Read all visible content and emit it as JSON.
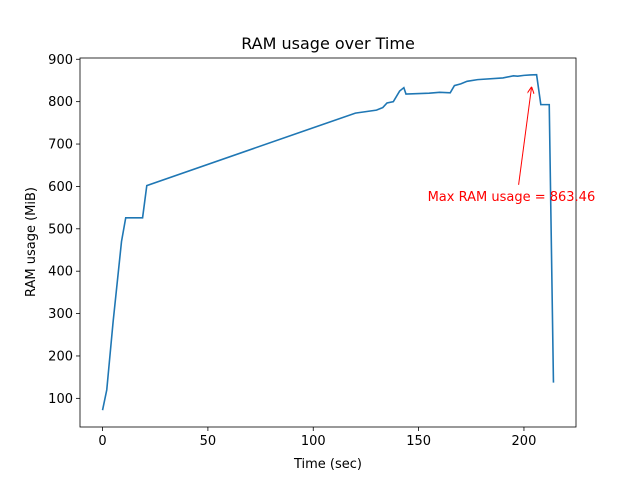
{
  "chart_data": {
    "type": "line",
    "title": "RAM usage over Time",
    "xlabel": "Time (sec)",
    "ylabel": "RAM usage (MiB)",
    "x": [
      0,
      2,
      5,
      9,
      11,
      19,
      21,
      120,
      130,
      133,
      135,
      138,
      141,
      143,
      144,
      155,
      160,
      165,
      167,
      170,
      173,
      178,
      190,
      195,
      197,
      200,
      203,
      206,
      208,
      212,
      214
    ],
    "series": [
      {
        "name": "RAM usage",
        "color": "#1f77b4",
        "values": [
          72,
          120,
          280,
          470,
          526,
          526,
          602,
          773,
          780,
          786,
          797,
          800,
          825,
          833,
          818,
          820,
          822,
          821,
          838,
          842,
          848,
          852,
          856,
          861,
          860,
          862,
          863,
          863.46,
          793,
          793,
          137
        ]
      }
    ],
    "xlim": [
      -10.7,
      224.7
    ],
    "ylim": [
      32.4,
      903
    ],
    "xticks": [
      0,
      50,
      100,
      150,
      200
    ],
    "yticks": [
      100,
      200,
      300,
      400,
      500,
      600,
      700,
      800,
      900
    ],
    "annotation": {
      "text": "Max RAM usage = 863.46",
      "color": "#ff0000"
    }
  }
}
